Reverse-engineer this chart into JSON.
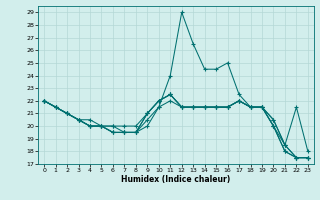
{
  "xlabel": "Humidex (Indice chaleur)",
  "xlim": [
    -0.5,
    23.5
  ],
  "ylim": [
    17,
    29.5
  ],
  "yticks": [
    17,
    18,
    19,
    20,
    21,
    22,
    23,
    24,
    25,
    26,
    27,
    28,
    29
  ],
  "xticks": [
    0,
    1,
    2,
    3,
    4,
    5,
    6,
    7,
    8,
    9,
    10,
    11,
    12,
    13,
    14,
    15,
    16,
    17,
    18,
    19,
    20,
    21,
    22,
    23
  ],
  "line_color": "#007070",
  "bg_color": "#d2eeec",
  "grid_color": "#b4d8d6",
  "lines": [
    [
      22.0,
      21.5,
      21.0,
      20.5,
      20.0,
      20.0,
      19.5,
      19.5,
      19.5,
      20.0,
      21.5,
      24.0,
      29.0,
      26.5,
      24.5,
      24.5,
      25.0,
      22.5,
      21.5,
      21.5,
      20.0,
      18.0,
      17.5,
      17.5
    ],
    [
      22.0,
      21.5,
      21.0,
      20.5,
      20.0,
      20.0,
      19.5,
      19.5,
      19.5,
      20.5,
      21.5,
      22.0,
      21.5,
      21.5,
      21.5,
      21.5,
      21.5,
      22.0,
      21.5,
      21.5,
      20.0,
      18.0,
      17.5,
      17.5
    ],
    [
      22.0,
      21.5,
      21.0,
      20.5,
      20.5,
      20.0,
      20.0,
      20.0,
      20.0,
      21.0,
      22.0,
      22.5,
      21.5,
      21.5,
      21.5,
      21.5,
      21.5,
      22.0,
      21.5,
      21.5,
      20.5,
      18.5,
      21.5,
      18.0
    ],
    [
      22.0,
      21.5,
      21.0,
      20.5,
      20.0,
      20.0,
      20.0,
      19.5,
      19.5,
      21.0,
      22.0,
      22.5,
      21.5,
      21.5,
      21.5,
      21.5,
      21.5,
      22.0,
      21.5,
      21.5,
      20.0,
      18.5,
      17.5,
      17.5
    ],
    [
      22.0,
      21.5,
      21.0,
      20.5,
      20.0,
      20.0,
      19.5,
      19.5,
      19.5,
      21.0,
      22.0,
      22.5,
      21.5,
      21.5,
      21.5,
      21.5,
      21.5,
      22.0,
      21.5,
      21.5,
      20.5,
      18.5,
      17.5,
      17.5
    ]
  ]
}
